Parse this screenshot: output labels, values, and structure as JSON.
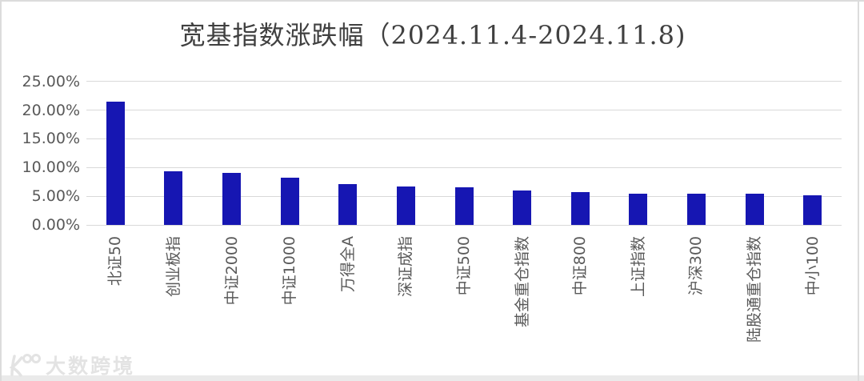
{
  "chart_data": {
    "type": "bar",
    "title": "宽基指数涨跌幅（2024.11.4-2024.11.8)",
    "categories": [
      "北证50",
      "创业板指",
      "中证2000",
      "中证1000",
      "万得全A",
      "深证成指",
      "中证500",
      "基金重仓指数",
      "中证800",
      "上证指数",
      "沪深300",
      "陆股通重仓指数",
      "中小100"
    ],
    "values": [
      21.5,
      9.3,
      9.0,
      8.2,
      7.1,
      6.7,
      6.6,
      6.0,
      5.7,
      5.5,
      5.5,
      5.5,
      5.2
    ],
    "value_unit": "%",
    "xlabel": "",
    "ylabel": "",
    "ylim": [
      0,
      25
    ],
    "yticks": [
      {
        "value": 0,
        "label": "0.00%"
      },
      {
        "value": 5,
        "label": "5.00%"
      },
      {
        "value": 10,
        "label": "10.00%"
      },
      {
        "value": 15,
        "label": "15.00%"
      },
      {
        "value": 20,
        "label": "20.00%"
      },
      {
        "value": 25,
        "label": "25.00%"
      }
    ],
    "grid": true,
    "legend": false,
    "bar_color": "#1616b2",
    "gridline_color": "#d9d9d9",
    "axis_label_color": "#595959",
    "title_color": "#404040"
  },
  "watermark": {
    "logo": "k100-logo-icon",
    "text": "大数跨境"
  }
}
